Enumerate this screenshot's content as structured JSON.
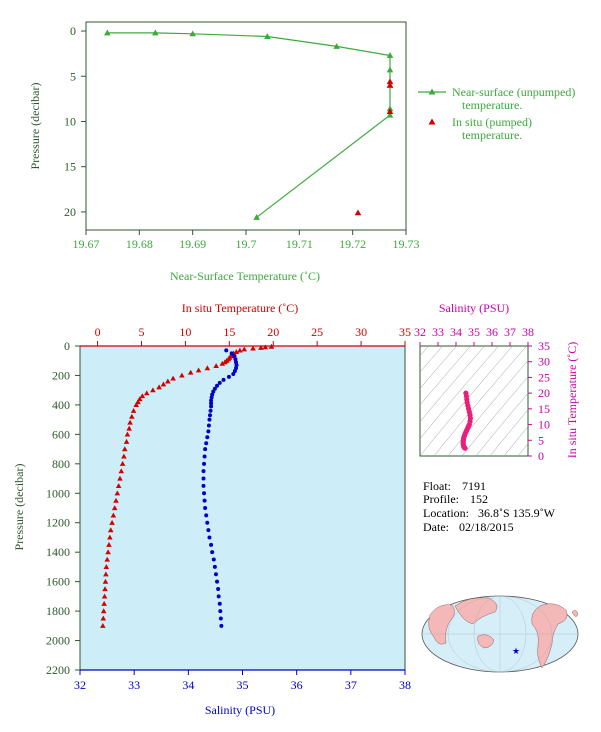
{
  "colors": {
    "green": "#3caa3c",
    "red": "#d40000",
    "blue": "#0000cc",
    "magenta": "#cc00aa",
    "panel_bg": "#cdeef8",
    "axis_green": "#2d5a2d"
  },
  "chart_data": [
    {
      "id": "near-surface",
      "type": "line",
      "xlabel": "Near-Surface Temperature (˚C)",
      "ylabel": "Pressure (decibar)",
      "xlim": [
        19.67,
        19.73
      ],
      "ylim": [
        22,
        -1
      ],
      "x_ticks": [
        "19.67",
        "19.68",
        "19.69",
        "19.7",
        "19.71",
        "19.72",
        "19.73"
      ],
      "y_ticks": [
        "0",
        "5",
        "10",
        "15",
        "20"
      ],
      "legend_position": "right",
      "series": [
        {
          "name": "Near-surface (unpumped) temperature.",
          "marker": "triangle",
          "line": true,
          "x": [
            19.674,
            19.683,
            19.69,
            19.704,
            19.717,
            19.727,
            19.727,
            19.727,
            19.727,
            19.727,
            19.702
          ],
          "y": [
            0.2,
            0.2,
            0.3,
            0.6,
            1.7,
            2.7,
            4.3,
            6.0,
            8.6,
            9.3,
            20.6
          ]
        },
        {
          "name": "In situ (pumped) temperature.",
          "marker": "triangle",
          "line": false,
          "x": [
            19.727,
            19.727,
            19.727,
            19.721
          ],
          "y": [
            5.6,
            6.0,
            8.9,
            20.1
          ]
        }
      ]
    },
    {
      "id": "profile",
      "type": "scatter",
      "ylabel": "Pressure (decibar)",
      "top_xlabel": "In situ Temperature (˚C)",
      "bottom_xlabel": "Salinity (PSU)",
      "temp_lim": [
        -2,
        35
      ],
      "sal_lim": [
        32,
        38
      ],
      "ylim": [
        2200,
        0
      ],
      "temp_ticks": [
        "0",
        "5",
        "10",
        "15",
        "20",
        "25",
        "30",
        "35"
      ],
      "sal_ticks": [
        "32",
        "33",
        "34",
        "35",
        "36",
        "37",
        "38"
      ],
      "y_ticks": [
        "0",
        "200",
        "400",
        "600",
        "800",
        "1000",
        "1200",
        "1400",
        "1600",
        "1800",
        "2000",
        "2200"
      ],
      "temperature": {
        "p": [
          4,
          8,
          12,
          16,
          22,
          30,
          40,
          50,
          60,
          70,
          80,
          90,
          100,
          110,
          120,
          135,
          150,
          165,
          180,
          200,
          220,
          240,
          260,
          280,
          300,
          320,
          340,
          360,
          380,
          400,
          440,
          480,
          520,
          560,
          600,
          650,
          700,
          750,
          800,
          850,
          900,
          950,
          1000,
          1050,
          1100,
          1150,
          1200,
          1250,
          1300,
          1350,
          1400,
          1450,
          1500,
          1550,
          1600,
          1650,
          1700,
          1750,
          1800,
          1850,
          1900
        ],
        "t": [
          19.8,
          19.1,
          18.6,
          17.7,
          16.7,
          16.2,
          15.8,
          15.5,
          15.3,
          15.2,
          15.0,
          14.9,
          14.7,
          14.5,
          14.2,
          13.5,
          12.5,
          11.5,
          10.6,
          9.6,
          8.6,
          8.0,
          7.5,
          7.0,
          6.3,
          5.6,
          5.1,
          4.8,
          4.6,
          4.4,
          4.1,
          3.9,
          3.7,
          3.6,
          3.4,
          3.3,
          3.1,
          3.0,
          2.85,
          2.7,
          2.55,
          2.4,
          2.25,
          2.1,
          1.95,
          1.8,
          1.65,
          1.5,
          1.4,
          1.3,
          1.2,
          1.1,
          1.0,
          0.95,
          0.9,
          0.85,
          0.8,
          0.75,
          0.7,
          0.65,
          0.6
        ]
      },
      "salinity": {
        "p": [
          30,
          50,
          70,
          90,
          110,
          130,
          150,
          170,
          190,
          210,
          230,
          250,
          270,
          290,
          310,
          330,
          350,
          370,
          390,
          410,
          440,
          470,
          500,
          540,
          580,
          620,
          660,
          700,
          750,
          800,
          850,
          900,
          950,
          1000,
          1050,
          1100,
          1150,
          1200,
          1250,
          1300,
          1350,
          1400,
          1450,
          1500,
          1550,
          1600,
          1650,
          1700,
          1750,
          1800,
          1850,
          1900
        ],
        "s": [
          34.7,
          34.8,
          34.85,
          34.87,
          34.88,
          34.89,
          34.88,
          34.86,
          34.83,
          34.75,
          34.65,
          34.58,
          34.53,
          34.49,
          34.46,
          34.44,
          34.43,
          34.42,
          34.42,
          34.42,
          34.41,
          34.4,
          34.39,
          34.38,
          34.37,
          34.35,
          34.33,
          34.31,
          34.3,
          34.29,
          34.28,
          34.28,
          34.28,
          34.29,
          34.3,
          34.31,
          34.33,
          34.35,
          34.37,
          34.39,
          34.42,
          34.44,
          34.47,
          34.49,
          34.51,
          34.53,
          34.55,
          34.56,
          34.58,
          34.59,
          34.6,
          34.61
        ]
      }
    },
    {
      "id": "ts-inset",
      "type": "scatter",
      "title": "Salinity (PSU)",
      "ylabel": "In situ Temperature (˚C)",
      "xlim": [
        32,
        38
      ],
      "ylim": [
        0,
        35
      ],
      "x_ticks": [
        "32",
        "33",
        "34",
        "35",
        "36",
        "37",
        "38"
      ],
      "y_ticks": [
        "0",
        "5",
        "10",
        "15",
        "20",
        "25",
        "30",
        "35"
      ],
      "points": {
        "s": [
          34.55,
          34.58,
          34.6,
          34.62,
          34.66,
          34.7,
          34.74,
          34.78,
          34.8,
          34.78,
          34.74,
          34.7,
          34.66,
          34.62,
          34.58,
          34.54,
          34.5,
          34.47,
          34.44,
          34.42,
          34.41,
          34.4,
          34.4,
          34.41,
          34.43,
          34.46,
          34.5
        ],
        "t": [
          20.0,
          19.0,
          18.0,
          17.0,
          16.0,
          15.0,
          14.0,
          13.0,
          12.0,
          11.0,
          10.0,
          9.5,
          9.0,
          8.5,
          8.0,
          7.5,
          7.0,
          6.5,
          6.0,
          5.5,
          5.0,
          4.5,
          4.0,
          3.5,
          3.0,
          2.7,
          2.5
        ]
      }
    }
  ],
  "metadata": {
    "float_label": "Float:",
    "float_value": "7191",
    "profile_label": "Profile:",
    "profile_value": "152",
    "location_label": "Location:",
    "location_value": "36.8˚S  135.9˚W",
    "date_label": "Date:",
    "date_value": "02/18/2015"
  },
  "map": {
    "marker_icon": "star-icon"
  }
}
